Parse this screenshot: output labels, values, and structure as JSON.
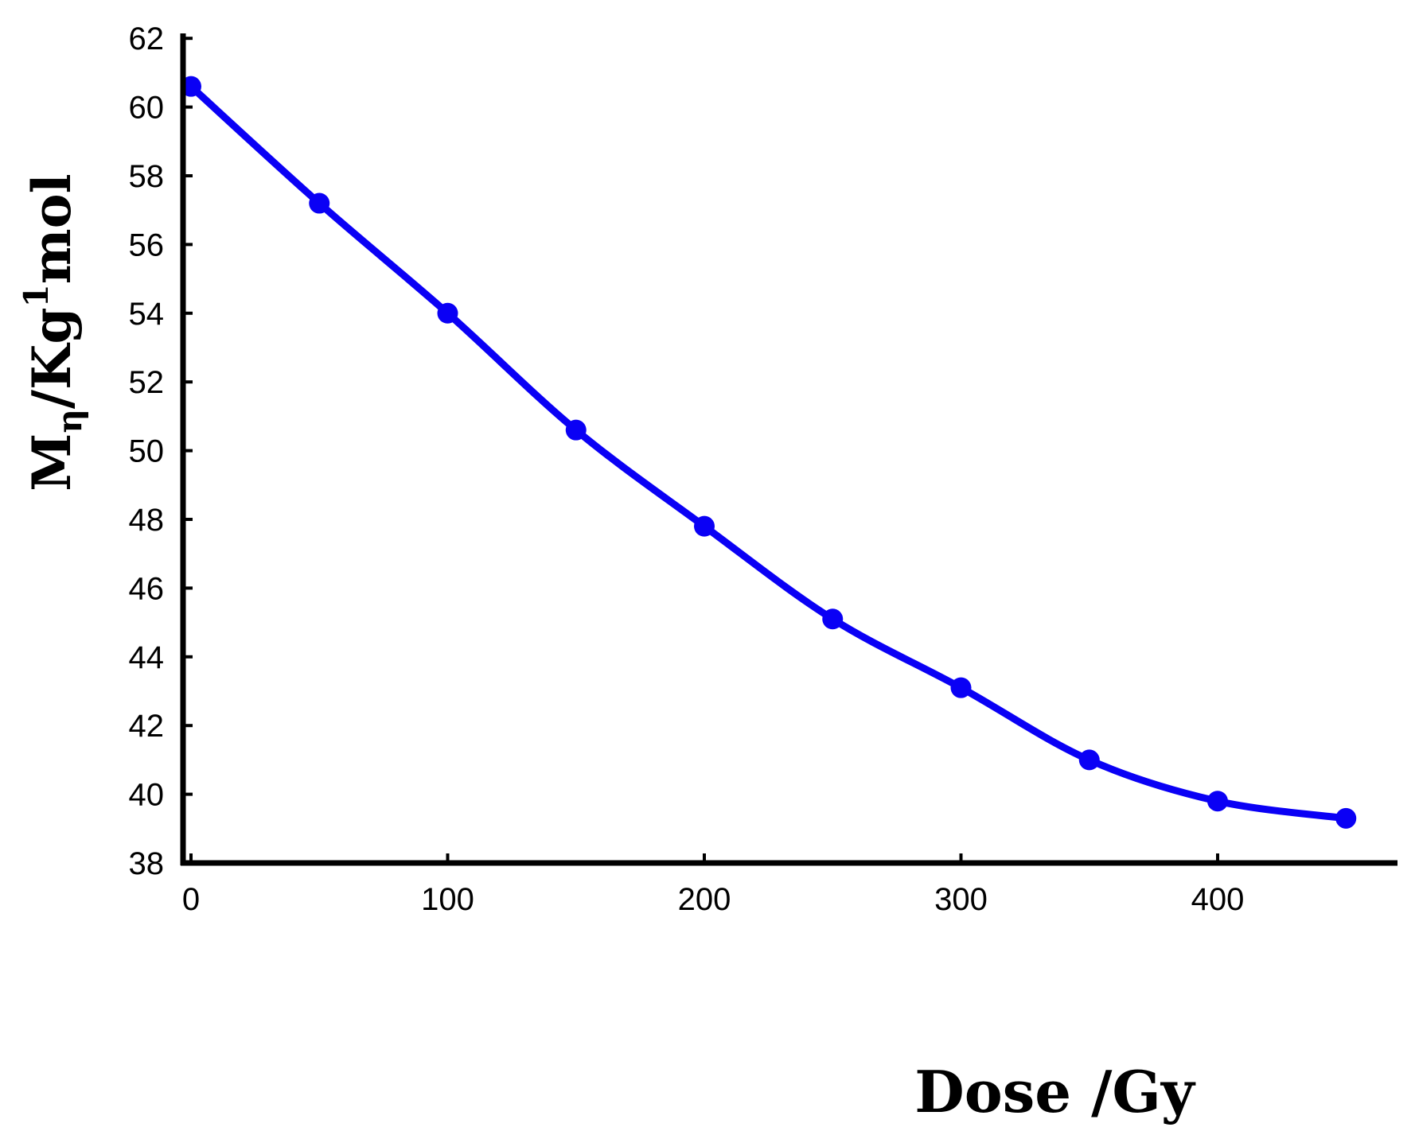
{
  "chart_data": {
    "type": "line",
    "title": "",
    "xlabel": "Dose /Gy",
    "ylabel": {
      "main": "M",
      "subscript": "η",
      "middle": "/Kg",
      "superscript": "1",
      "end": "mol"
    },
    "xlim": [
      0,
      470
    ],
    "ylim": [
      38,
      62
    ],
    "x_ticks": [
      0,
      100,
      200,
      300,
      400
    ],
    "y_ticks": [
      38,
      40,
      42,
      44,
      46,
      48,
      50,
      52,
      54,
      56,
      58,
      60,
      62
    ],
    "grid": false,
    "legend": "none",
    "series": [
      {
        "color": "#0a00f5",
        "marker": "circle",
        "x": [
          0,
          50,
          100,
          150,
          200,
          250,
          300,
          350,
          400,
          450
        ],
        "y": [
          60.6,
          57.2,
          54.0,
          50.6,
          47.8,
          45.1,
          43.1,
          41.0,
          39.8,
          39.3
        ]
      }
    ]
  }
}
